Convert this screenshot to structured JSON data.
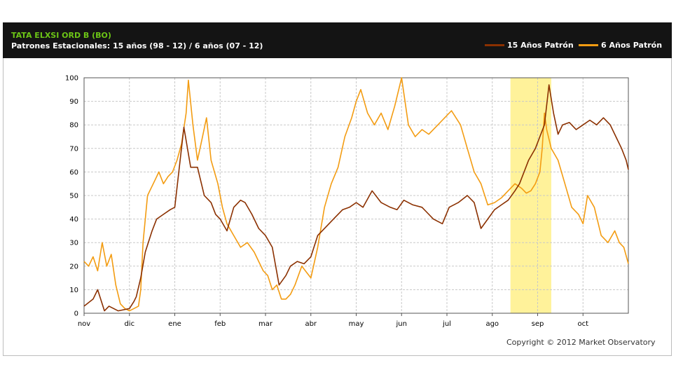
{
  "header": {
    "ticker": "TATA ELXSI ORD B (BO)",
    "subtitle": "Patrones Estacionales: 15 años (98 - 12) / 6 años (07 - 12)"
  },
  "colors": {
    "header_bg": "#141414",
    "ticker": "#6cc516",
    "series_15": "#8b3000",
    "series_6": "#f39c12",
    "highlight": "#fff29a"
  },
  "chart_data": {
    "type": "line",
    "title": "",
    "xlabel": "",
    "ylabel": "",
    "ylim": [
      0,
      100
    ],
    "xlim": [
      0,
      12
    ],
    "grid": true,
    "legend_position": "top-right",
    "x_tick_labels": [
      "nov",
      "dic",
      "ene",
      "feb",
      "mar",
      "abr",
      "may",
      "jun",
      "jul",
      "ago",
      "sep",
      "oct"
    ],
    "y_ticks": [
      0,
      10,
      20,
      30,
      40,
      50,
      60,
      70,
      80,
      90,
      100
    ],
    "highlight": {
      "start": 9.4,
      "end": 10.3
    },
    "series": [
      {
        "name": "15 Años Patrón",
        "color": "#8b3000",
        "x": [
          0,
          0.2,
          0.3,
          0.45,
          0.55,
          0.75,
          1.0,
          1.1,
          1.15,
          1.25,
          1.35,
          1.5,
          1.6,
          1.75,
          1.9,
          2.0,
          2.1,
          2.2,
          2.35,
          2.5,
          2.65,
          2.8,
          2.9,
          3.0,
          3.15,
          3.3,
          3.45,
          3.55,
          3.7,
          3.85,
          4.0,
          4.15,
          4.3,
          4.45,
          4.55,
          4.7,
          4.85,
          5.0,
          5.15,
          5.35,
          5.5,
          5.7,
          5.85,
          6.0,
          6.15,
          6.35,
          6.55,
          6.75,
          6.9,
          7.05,
          7.25,
          7.45,
          7.55,
          7.7,
          7.9,
          8.05,
          8.25,
          8.45,
          8.6,
          8.75,
          8.9,
          9.05,
          9.2,
          9.35,
          9.5,
          9.6,
          9.7,
          9.8,
          9.95,
          10.05,
          10.15,
          10.25,
          10.35,
          10.45,
          10.55,
          10.7,
          10.85,
          11.0,
          11.15,
          11.3,
          11.45,
          11.6,
          11.75,
          11.85,
          11.95,
          12.0
        ],
        "y": [
          3,
          6,
          10,
          1,
          3,
          1,
          2,
          5,
          7,
          15,
          26,
          35,
          40,
          42,
          44,
          45,
          62,
          79,
          62,
          62,
          50,
          47,
          42,
          40,
          35,
          45,
          48,
          47,
          42,
          36,
          33,
          28,
          12,
          16,
          20,
          22,
          21,
          24,
          33,
          37,
          40,
          44,
          45,
          47,
          45,
          52,
          47,
          45,
          44,
          48,
          46,
          45,
          43,
          40,
          38,
          45,
          47,
          50,
          47,
          36,
          40,
          44,
          46,
          48,
          52,
          55,
          60,
          65,
          70,
          75,
          80,
          97,
          85,
          76,
          80,
          81,
          78,
          80,
          82,
          80,
          83,
          80,
          74,
          70,
          65,
          61
        ]
      },
      {
        "name": "6 Años Patrón",
        "color": "#f39c12",
        "x": [
          0,
          0.1,
          0.2,
          0.3,
          0.4,
          0.5,
          0.6,
          0.7,
          0.8,
          0.9,
          1.0,
          1.1,
          1.2,
          1.25,
          1.3,
          1.4,
          1.55,
          1.65,
          1.75,
          1.85,
          1.95,
          2.05,
          2.15,
          2.25,
          2.3,
          2.4,
          2.5,
          2.6,
          2.7,
          2.8,
          2.95,
          3.05,
          3.15,
          3.3,
          3.45,
          3.6,
          3.75,
          3.85,
          3.95,
          4.05,
          4.15,
          4.25,
          4.35,
          4.45,
          4.55,
          4.65,
          4.8,
          5.0,
          5.15,
          5.3,
          5.45,
          5.6,
          5.75,
          5.9,
          6.0,
          6.1,
          6.25,
          6.4,
          6.55,
          6.7,
          6.85,
          7.0,
          7.15,
          7.3,
          7.45,
          7.6,
          7.75,
          7.9,
          8.1,
          8.3,
          8.45,
          8.6,
          8.75,
          8.9,
          9.05,
          9.2,
          9.35,
          9.5,
          9.65,
          9.75,
          9.85,
          9.95,
          10.05,
          10.1,
          10.15,
          10.2,
          10.3,
          10.45,
          10.6,
          10.75,
          10.9,
          11.0,
          11.1,
          11.25,
          11.4,
          11.55,
          11.7,
          11.8,
          11.9,
          12.0
        ],
        "y": [
          22,
          20,
          24,
          18,
          30,
          20,
          25,
          12,
          4,
          2,
          1,
          2,
          3,
          10,
          30,
          50,
          56,
          60,
          55,
          58,
          60,
          65,
          72,
          85,
          99,
          80,
          65,
          74,
          83,
          65,
          55,
          45,
          38,
          33,
          28,
          30,
          26,
          22,
          18,
          16,
          10,
          12,
          6,
          6,
          8,
          12,
          20,
          15,
          28,
          45,
          55,
          62,
          75,
          83,
          90,
          95,
          85,
          80,
          85,
          78,
          88,
          100,
          80,
          75,
          78,
          76,
          79,
          82,
          86,
          80,
          70,
          60,
          55,
          46,
          47,
          49,
          52,
          55,
          53,
          51,
          52,
          55,
          60,
          70,
          85,
          78,
          70,
          65,
          55,
          45,
          42,
          38,
          50,
          45,
          33,
          30,
          35,
          30,
          28,
          21
        ]
      }
    ]
  },
  "footer": {
    "copyright": "Copyright © 2012 Market Observatory"
  }
}
